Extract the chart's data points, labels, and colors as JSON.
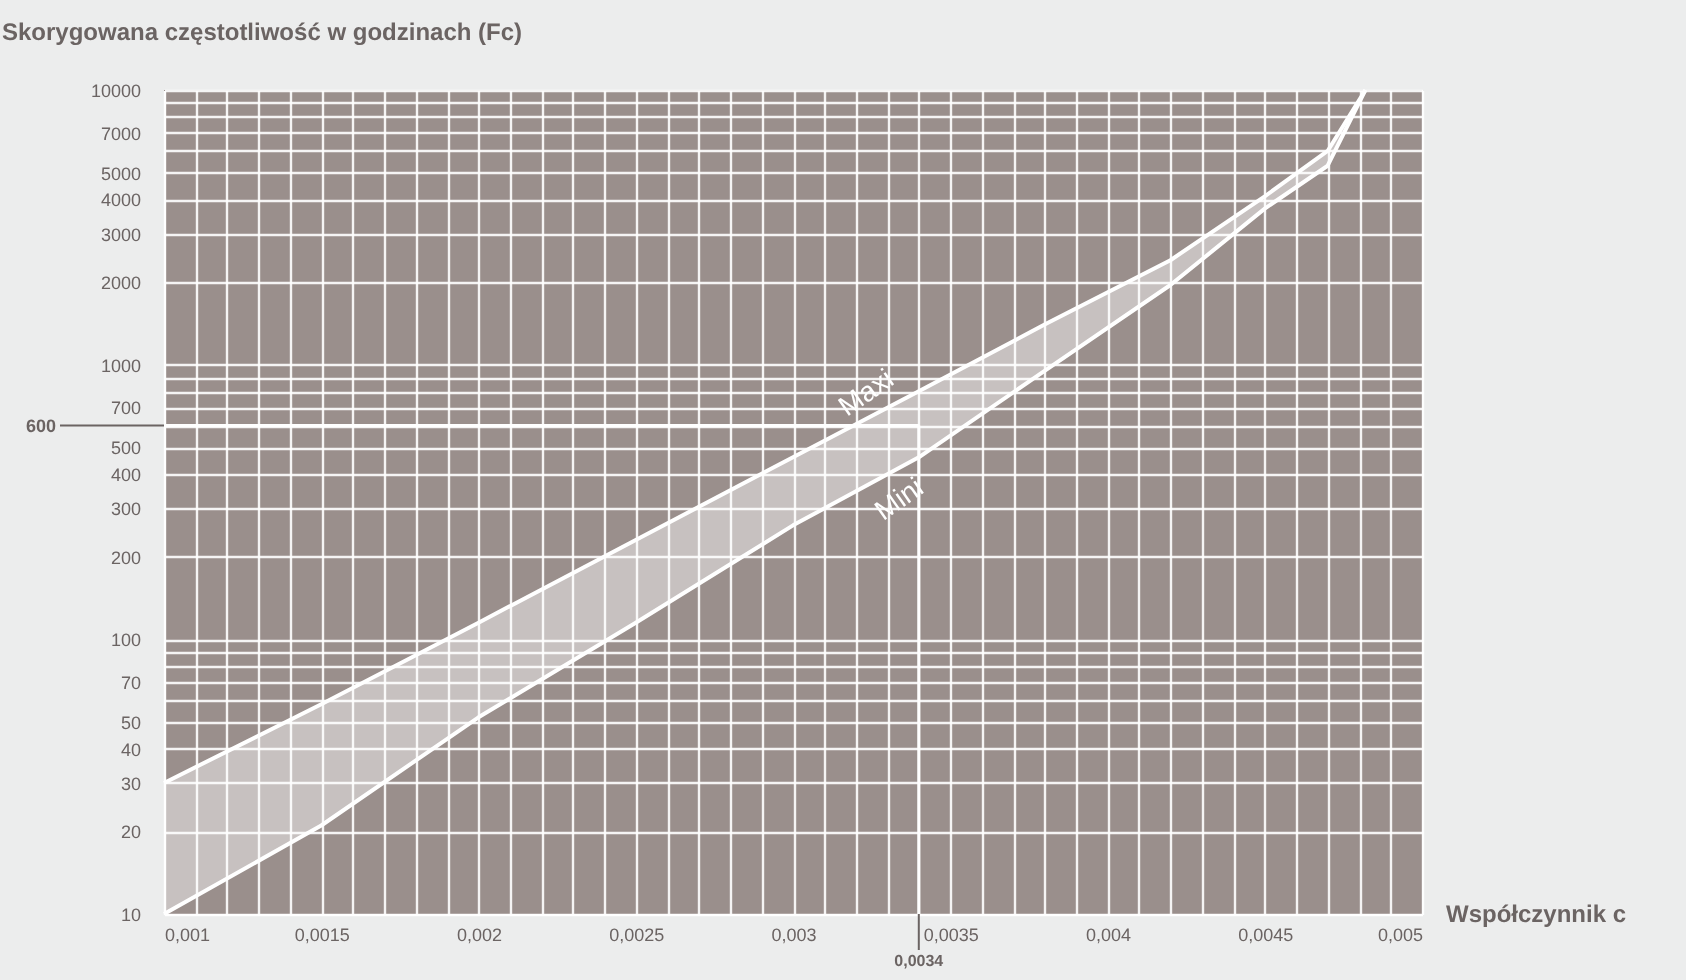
{
  "chart_data": {
    "type": "line",
    "title": "Skorygowana częstotliwość w godzinach (Fc)",
    "xlabel": "Współczynnik c",
    "x": [
      0.001,
      0.0015,
      0.002,
      0.0025,
      0.003,
      0.0034,
      0.0038,
      0.0042,
      0.0045,
      0.0047,
      0.00482
    ],
    "series": [
      {
        "name": "Maxi",
        "color": "#ffffff",
        "values": [
          30,
          58,
          115,
          230,
          460,
          800,
          1400,
          2400,
          4100,
          6000,
          10000
        ],
        "lower": [
          10,
          21,
          52,
          115,
          260,
          460,
          950,
          1950,
          3700,
          5300,
          10000
        ],
        "upper": [
          30,
          58,
          115,
          230,
          460,
          800,
          1400,
          2400,
          4100,
          6000,
          10000
        ]
      },
      {
        "name": "Mini",
        "color": "#ffffff",
        "values": [
          10,
          21,
          52,
          115,
          260,
          460,
          950,
          1950,
          3700,
          5300,
          10000
        ]
      }
    ],
    "log": "y",
    "xlim": [
      0.001,
      0.005
    ],
    "ylim": [
      10,
      10000
    ],
    "xticks": [
      {
        "value": 0.001,
        "label": "0,001"
      },
      {
        "value": 0.0011,
        "label": null
      },
      {
        "value": 0.0012,
        "label": null
      },
      {
        "value": 0.0013,
        "label": null
      },
      {
        "value": 0.0014,
        "label": null
      },
      {
        "value": 0.0015,
        "label": "0,0015"
      },
      {
        "value": 0.0016,
        "label": null
      },
      {
        "value": 0.0017,
        "label": null
      },
      {
        "value": 0.0018,
        "label": null
      },
      {
        "value": 0.0019,
        "label": null
      },
      {
        "value": 0.002,
        "label": "0,002"
      },
      {
        "value": 0.0021,
        "label": null
      },
      {
        "value": 0.0022,
        "label": null
      },
      {
        "value": 0.0023,
        "label": null
      },
      {
        "value": 0.0024,
        "label": null
      },
      {
        "value": 0.0025,
        "label": "0,0025"
      },
      {
        "value": 0.0026,
        "label": null
      },
      {
        "value": 0.0027,
        "label": null
      },
      {
        "value": 0.0028,
        "label": null
      },
      {
        "value": 0.0029,
        "label": null
      },
      {
        "value": 0.003,
        "label": "0,003"
      },
      {
        "value": 0.0031,
        "label": null
      },
      {
        "value": 0.0032,
        "label": null
      },
      {
        "value": 0.0033,
        "label": null
      },
      {
        "value": 0.0034,
        "label": null
      },
      {
        "value": 0.0035,
        "label": "0,0035"
      },
      {
        "value": 0.0036,
        "label": null
      },
      {
        "value": 0.0037,
        "label": null
      },
      {
        "value": 0.0038,
        "label": null
      },
      {
        "value": 0.0039,
        "label": null
      },
      {
        "value": 0.004,
        "label": "0,004"
      },
      {
        "value": 0.0041,
        "label": null
      },
      {
        "value": 0.0042,
        "label": null
      },
      {
        "value": 0.0043,
        "label": null
      },
      {
        "value": 0.0044,
        "label": null
      },
      {
        "value": 0.0045,
        "label": "0,0045"
      },
      {
        "value": 0.0046,
        "label": null
      },
      {
        "value": 0.0047,
        "label": null
      },
      {
        "value": 0.0048,
        "label": null
      },
      {
        "value": 0.0049,
        "label": null
      },
      {
        "value": 0.005,
        "label": "0,005"
      }
    ],
    "yticks": [
      10,
      20,
      30,
      40,
      50,
      {
        "value": 60,
        "label": null
      },
      70,
      {
        "value": 80,
        "label": null
      },
      {
        "value": 90,
        "label": null
      },
      100,
      200,
      300,
      400,
      500,
      {
        "value": 600,
        "label": null
      },
      700,
      {
        "value": 800,
        "label": null
      },
      {
        "value": 900,
        "label": null
      },
      1000,
      2000,
      3000,
      4000,
      5000,
      {
        "value": 6000,
        "label": null
      },
      7000,
      {
        "value": 8000,
        "label": null
      },
      {
        "value": 9000,
        "label": null
      },
      10000
    ],
    "ref_lines": [
      {
        "axis": "y",
        "value": 600,
        "label": "600",
        "color": "#ffffff"
      },
      {
        "axis": "x",
        "value": 0.0034,
        "label": "0,0034",
        "color": "#ffffff"
      }
    ],
    "grid": true,
    "marker": "none",
    "line_style": "solid"
  }
}
